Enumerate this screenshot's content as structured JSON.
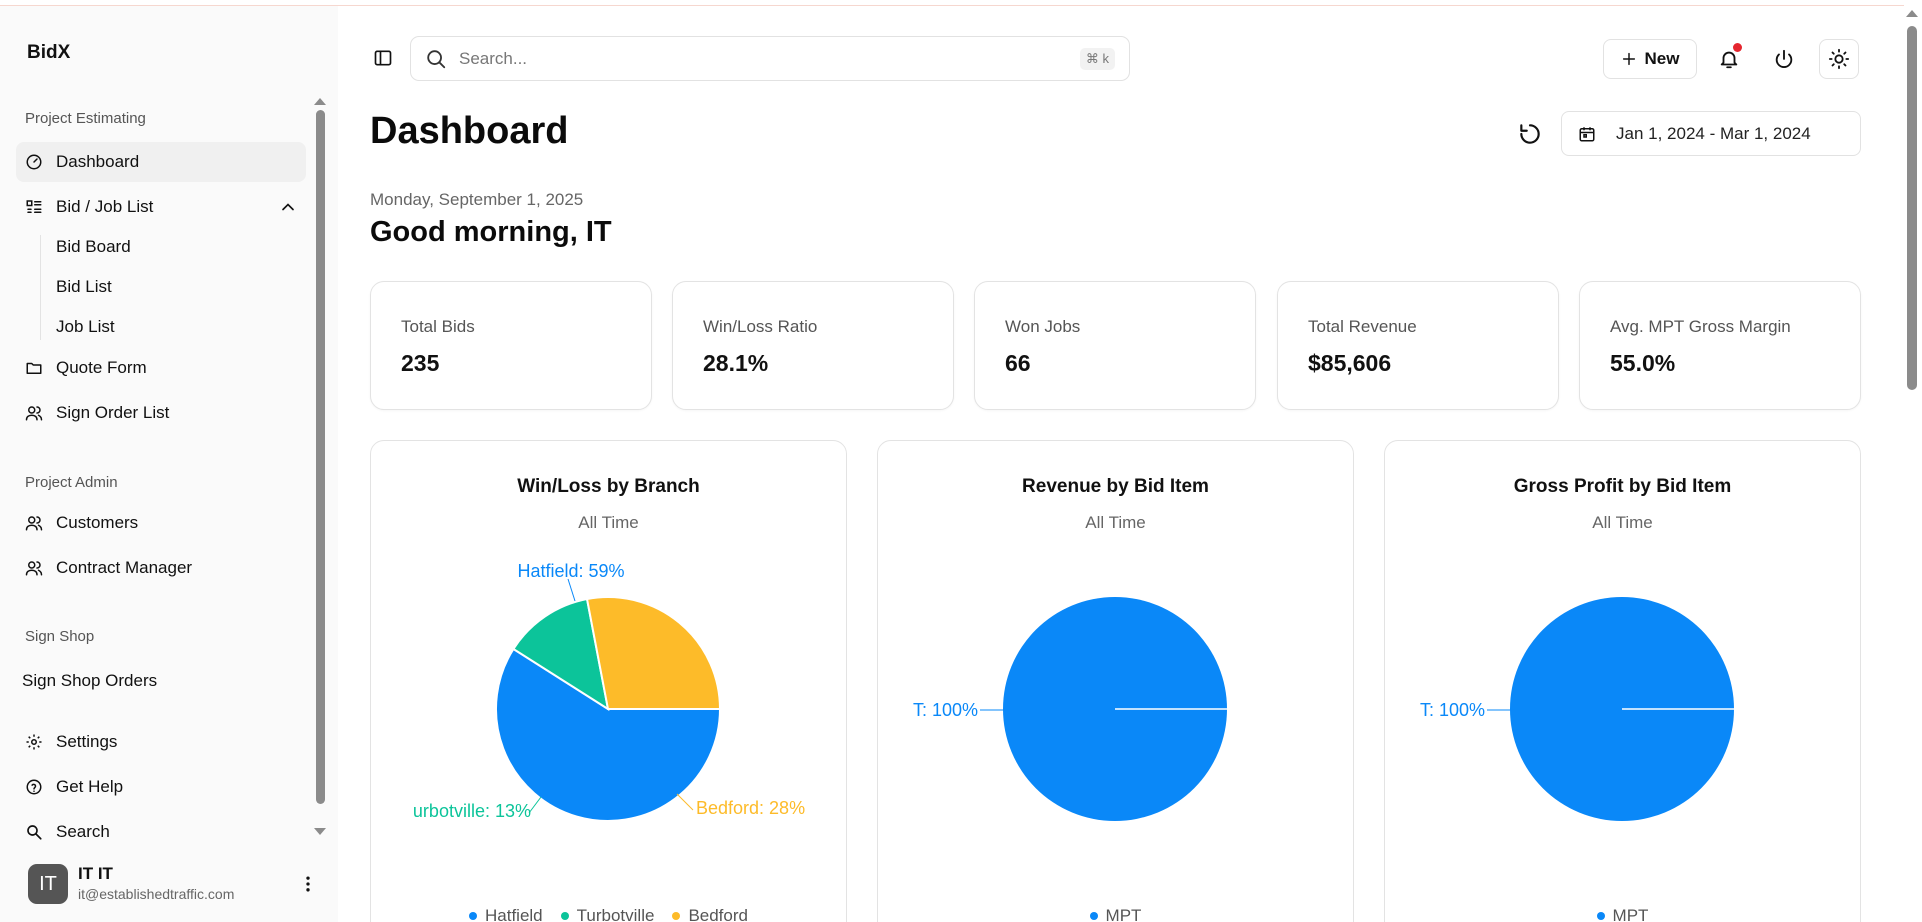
{
  "app": {
    "name": "BidX"
  },
  "sidebar": {
    "sections": [
      {
        "label": "Project Estimating"
      },
      {
        "label": "Project Admin"
      },
      {
        "label": "Sign Shop"
      }
    ],
    "items": [
      {
        "label": "Dashboard",
        "icon": "gauge-icon"
      },
      {
        "label": "Bid / Job List",
        "icon": "list-icon"
      },
      {
        "label": "Quote Form",
        "icon": "folder-icon"
      },
      {
        "label": "Sign Order List",
        "icon": "user-icon"
      },
      {
        "label": "Customers",
        "icon": "users-icon"
      },
      {
        "label": "Contract Manager",
        "icon": "users-icon"
      },
      {
        "label": "Sign Shop Orders"
      },
      {
        "label": "Settings",
        "icon": "gear-icon"
      },
      {
        "label": "Get Help",
        "icon": "help-icon"
      },
      {
        "label": "Search",
        "icon": "search-icon"
      }
    ],
    "sub_items": [
      {
        "label": "Bid Board"
      },
      {
        "label": "Bid List"
      },
      {
        "label": "Job List"
      }
    ],
    "user": {
      "initials": "IT",
      "name": "IT IT",
      "email": "it@establishedtraffic.com"
    }
  },
  "topbar": {
    "search_placeholder": "Search...",
    "search_shortcut": "⌘ k",
    "new_label": "New"
  },
  "header": {
    "title": "Dashboard",
    "date_range": "Jan 1, 2024 - Mar 1, 2024",
    "date": "Monday, September 1, 2025",
    "greeting": "Good morning, IT"
  },
  "stats": [
    {
      "label": "Total Bids",
      "value": "235"
    },
    {
      "label": "Win/Loss Ratio",
      "value": "28.1%"
    },
    {
      "label": "Won Jobs",
      "value": "66"
    },
    {
      "label": "Total Revenue",
      "value": "$85,606"
    },
    {
      "label": "Avg. MPT Gross Margin",
      "value": "55.0%"
    }
  ],
  "colors": {
    "blue": "#0a88f8",
    "green": "#0cc49a",
    "yellow": "#fdbb29",
    "accent_dot": "#e5262f"
  },
  "chart_data": [
    {
      "type": "pie",
      "title": "Win/Loss by Branch",
      "subtitle": "All Time",
      "categories": [
        "Hatfield",
        "Turbotville",
        "Bedford"
      ],
      "values": [
        59,
        13,
        28
      ],
      "slice_labels": [
        "Hatfield: 59%",
        "urbotville: 13%",
        "Bedford: 28%"
      ],
      "legend": [
        "Hatfield",
        "Turbotville",
        "Bedford"
      ],
      "colors": [
        "#0a88f8",
        "#0cc49a",
        "#fdbb29"
      ]
    },
    {
      "type": "pie",
      "title": "Revenue by Bid Item",
      "subtitle": "All Time",
      "categories": [
        "T",
        "MPT"
      ],
      "values": [
        100,
        0
      ],
      "slice_labels": [
        "T: 100%"
      ],
      "legend": [
        "MPT"
      ],
      "colors": [
        "#0a88f8",
        "#0a88f8"
      ]
    },
    {
      "type": "pie",
      "title": "Gross Profit by Bid Item",
      "subtitle": "All Time",
      "categories": [
        "T",
        "MPT"
      ],
      "values": [
        100,
        0
      ],
      "slice_labels": [
        "T: 100%"
      ],
      "legend": [
        "MPT"
      ],
      "colors": [
        "#0a88f8",
        "#0a88f8"
      ]
    }
  ]
}
